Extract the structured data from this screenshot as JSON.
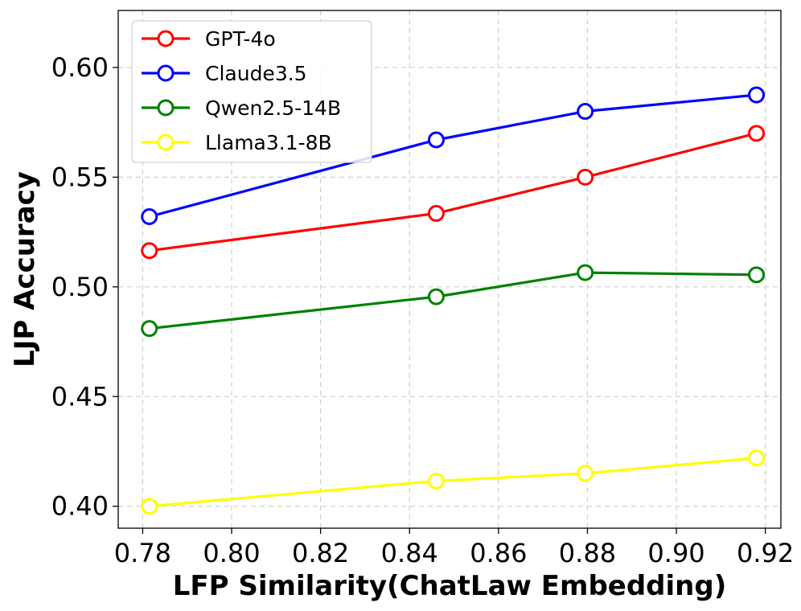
{
  "chart_data": {
    "type": "line",
    "title": "",
    "xlabel": "LFP Similarity(ChatLaw Embedding)",
    "ylabel": "LJP Accuracy",
    "xlim": [
      0.7745,
      0.9235
    ],
    "ylim": [
      0.39,
      0.626
    ],
    "xticks": [
      0.78,
      0.8,
      0.82,
      0.84,
      0.86,
      0.88,
      0.9,
      0.92
    ],
    "xtick_labels": [
      "0.78",
      "0.80",
      "0.82",
      "0.84",
      "0.86",
      "0.88",
      "0.90",
      "0.92"
    ],
    "yticks": [
      0.4,
      0.45,
      0.5,
      0.55,
      0.6
    ],
    "ytick_labels": [
      "0.40",
      "0.45",
      "0.50",
      "0.55",
      "0.60"
    ],
    "grid": true,
    "legend_position": "top-left",
    "x": [
      0.7815,
      0.846,
      0.8795,
      0.918
    ],
    "series": [
      {
        "name": "GPT-4o",
        "color": "#ff0000",
        "values": [
          0.5165,
          0.5335,
          0.55,
          0.57
        ]
      },
      {
        "name": "Claude3.5",
        "color": "#0000ff",
        "values": [
          0.532,
          0.567,
          0.58,
          0.5875
        ]
      },
      {
        "name": "Qwen2.5-14B",
        "color": "#008000",
        "values": [
          0.481,
          0.4955,
          0.5065,
          0.5055
        ]
      },
      {
        "name": "Llama3.1-8B",
        "color": "#ffff00",
        "values": [
          0.4,
          0.4115,
          0.415,
          0.422
        ]
      }
    ]
  }
}
